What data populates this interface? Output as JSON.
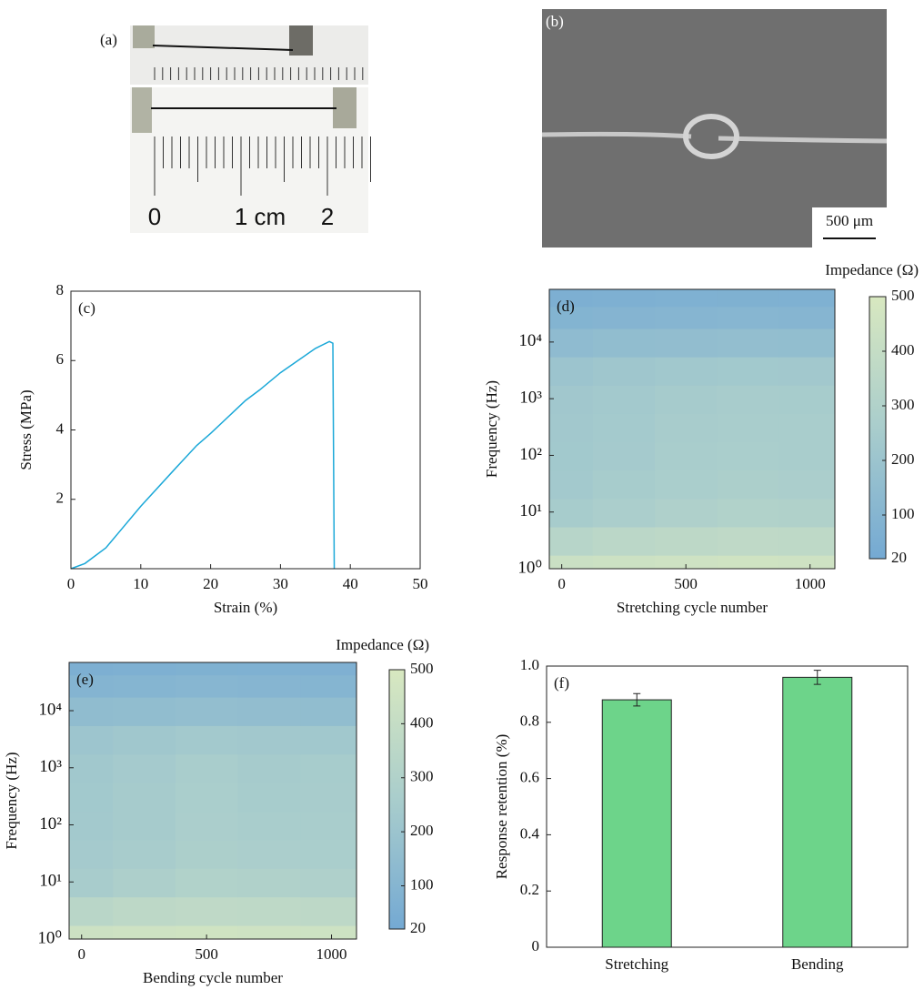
{
  "images": [
    {
      "label": "(a)",
      "ruler_labels": [
        "0",
        "1 cm",
        "2"
      ]
    },
    {
      "label": "(b)",
      "scale_bar": "500 μm"
    }
  ],
  "chart_data": [
    {
      "type": "line",
      "label": "(c)",
      "xlabel": "Strain (%)",
      "ylabel": "Stress (MPa)",
      "color": "#1ba8d8",
      "x": [
        0,
        2,
        5,
        10,
        15,
        18,
        20,
        25,
        27,
        30,
        35,
        37,
        37.5,
        37.7
      ],
      "values": [
        0,
        0.15,
        0.6,
        1.8,
        2.9,
        3.55,
        3.9,
        4.85,
        5.15,
        5.65,
        6.35,
        6.55,
        6.5,
        0
      ],
      "xlim": [
        0,
        50
      ],
      "xticks": [
        0,
        10,
        20,
        30,
        40,
        50
      ],
      "ylim": [
        0,
        8
      ],
      "yticks": [
        2,
        4,
        6,
        8
      ]
    },
    {
      "type": "heatmap",
      "label": "(d)",
      "xlabel": "Stretching cycle number",
      "ylabel": "Frequency (Hz)",
      "colorbar_label": "Impedance (Ω)",
      "colormap": [
        "#74a9d3",
        "#a9cdcc",
        "#d8e8c0"
      ],
      "ylog": true,
      "x": [
        0,
        250,
        500,
        750,
        1000
      ],
      "y": [
        1,
        3,
        10,
        30,
        100,
        300,
        1000,
        3000,
        10000,
        30000,
        60000
      ],
      "z": [
        [
          430,
          440,
          450,
          455,
          450
        ],
        [
          330,
          350,
          360,
          370,
          365
        ],
        [
          250,
          270,
          290,
          300,
          295
        ],
        [
          235,
          250,
          265,
          275,
          270
        ],
        [
          230,
          240,
          260,
          265,
          260
        ],
        [
          228,
          238,
          255,
          262,
          258
        ],
        [
          222,
          232,
          248,
          255,
          250
        ],
        [
          200,
          215,
          225,
          230,
          228
        ],
        [
          140,
          150,
          155,
          160,
          158
        ],
        [
          90,
          95,
          100,
          105,
          100
        ],
        [
          60,
          65,
          70,
          72,
          70
        ]
      ],
      "xlim": [
        -50,
        1100
      ],
      "xticks": [
        0,
        500,
        1000
      ],
      "ylim": [
        1,
        85000
      ],
      "yticks": [
        {
          "value": 1,
          "label": "10⁰"
        },
        {
          "value": 10,
          "label": "10¹"
        },
        {
          "value": 100,
          "label": "10²"
        },
        {
          "value": 1000,
          "label": "10³"
        },
        {
          "value": 10000,
          "label": "10⁴"
        }
      ],
      "clim": [
        20,
        500
      ],
      "cticks": [
        20,
        100,
        200,
        300,
        400,
        500
      ]
    },
    {
      "type": "heatmap",
      "label": "(e)",
      "xlabel": "Bending cycle number",
      "ylabel": "Frequency (Hz)",
      "colorbar_label": "Impedance (Ω)",
      "colormap": [
        "#74a9d3",
        "#a9cdcc",
        "#d8e8c0"
      ],
      "ylog": true,
      "x": [
        0,
        250,
        500,
        750,
        1000
      ],
      "y": [
        1,
        3,
        10,
        30,
        100,
        300,
        1000,
        3000,
        10000,
        30000,
        60000
      ],
      "z": [
        [
          440,
          450,
          455,
          450,
          445
        ],
        [
          340,
          360,
          370,
          365,
          360
        ],
        [
          255,
          280,
          300,
          295,
          290
        ],
        [
          240,
          255,
          275,
          270,
          265
        ],
        [
          232,
          248,
          268,
          262,
          258
        ],
        [
          230,
          245,
          265,
          250,
          255
        ],
        [
          225,
          240,
          258,
          245,
          250
        ],
        [
          205,
          220,
          232,
          228,
          225
        ],
        [
          145,
          150,
          160,
          155,
          150
        ],
        [
          92,
          98,
          105,
          100,
          98
        ],
        [
          62,
          66,
          72,
          70,
          68
        ]
      ],
      "xlim": [
        -50,
        1100
      ],
      "xticks": [
        0,
        500,
        1000
      ],
      "ylim": [
        1,
        70000
      ],
      "yticks": [
        {
          "value": 1,
          "label": "10⁰"
        },
        {
          "value": 10,
          "label": "10¹"
        },
        {
          "value": 100,
          "label": "10²"
        },
        {
          "value": 1000,
          "label": "10³"
        },
        {
          "value": 10000,
          "label": "10⁴"
        }
      ],
      "clim": [
        20,
        500
      ],
      "cticks": [
        20,
        100,
        200,
        300,
        400,
        500
      ]
    },
    {
      "type": "bar",
      "label": "(f)",
      "ylabel": "Response retention (%)",
      "color": "#6dd48a",
      "categories": [
        "Stretching",
        "Bending"
      ],
      "values": [
        0.88,
        0.96
      ],
      "errors": [
        0.022,
        0.025
      ],
      "ylim": [
        0,
        1
      ],
      "yticks": [
        0,
        0.2,
        0.4,
        0.6,
        0.8,
        {
          "value": 1,
          "label": "1.0"
        }
      ]
    }
  ]
}
